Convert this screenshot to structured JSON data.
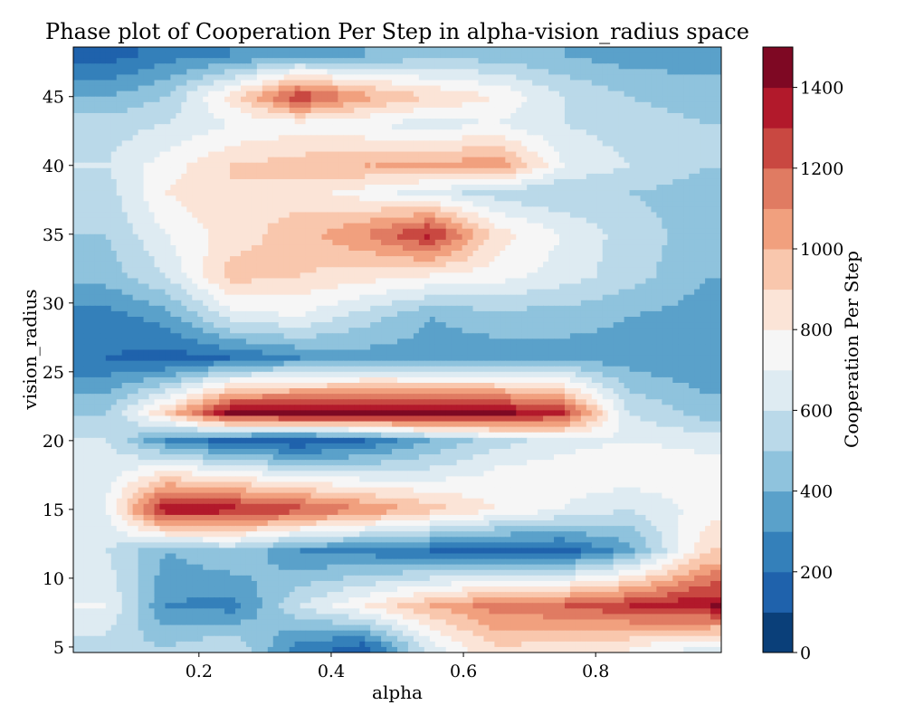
{
  "chart_data": {
    "type": "contourf",
    "title": "Phase plot of Cooperation Per Step in alpha-vision_radius space",
    "xlabel": "alpha",
    "ylabel": "vision_radius",
    "xlim": [
      0.01,
      0.99
    ],
    "ylim": [
      4.6,
      48.6
    ],
    "xticks": [
      0.2,
      0.4,
      0.6,
      0.8
    ],
    "yticks": [
      5,
      10,
      15,
      20,
      25,
      30,
      35,
      40,
      45
    ],
    "grid": false,
    "colormap": "RdBu_r",
    "colorbar": {
      "label": "Cooperation Per Step",
      "range": [
        0,
        1500
      ],
      "ticks": [
        0,
        200,
        400,
        600,
        800,
        1000,
        1200,
        1400
      ],
      "levels": [
        0,
        100,
        200,
        300,
        400,
        500,
        600,
        700,
        800,
        900,
        1000,
        1100,
        1200,
        1300,
        1400,
        1500
      ],
      "colors": [
        "#0a3f79",
        "#1f62ac",
        "#3480ba",
        "#5aa1ca",
        "#8fc3dd",
        "#bad9e9",
        "#deebf2",
        "#f6f6f6",
        "#fbe4d7",
        "#f9c7ad",
        "#f1a07e",
        "#e07b62",
        "#c94841",
        "#b2192b",
        "#7e0823"
      ]
    },
    "vision_radius": [
      5,
      8,
      12,
      15,
      18,
      20,
      22,
      26,
      29,
      32,
      35,
      38,
      40,
      43,
      45,
      48
    ],
    "rows": [
      {
        "vision_radius": 5,
        "values": [
          550,
          500,
          600,
          250,
          150,
          650,
          900,
          850,
          800,
          650
        ]
      },
      {
        "vision_radius": 8,
        "values": [
          700,
          300,
          250,
          600,
          800,
          1000,
          1150,
          1200,
          1300,
          1400
        ]
      },
      {
        "vision_radius": 12,
        "values": [
          600,
          400,
          500,
          300,
          250,
          200,
          150,
          150,
          350,
          900
        ]
      },
      {
        "vision_radius": 15,
        "values": [
          700,
          1400,
          1350,
          1250,
          1100,
          950,
          800,
          700,
          600,
          750
        ]
      },
      {
        "vision_radius": 18,
        "values": [
          650,
          750,
          650,
          550,
          550,
          600,
          700,
          750,
          800,
          750
        ]
      },
      {
        "vision_radius": 20,
        "values": [
          600,
          300,
          150,
          100,
          200,
          400,
          550,
          650,
          700,
          650
        ]
      },
      {
        "vision_radius": 22,
        "values": [
          500,
          900,
          1450,
          1480,
          1480,
          1470,
          1450,
          1300,
          600,
          450
        ]
      },
      {
        "vision_radius": 26,
        "values": [
          200,
          150,
          200,
          300,
          350,
          350,
          350,
          350,
          350,
          300
        ]
      },
      {
        "vision_radius": 29,
        "values": [
          250,
          350,
          650,
          700,
          550,
          400,
          450,
          450,
          400,
          350
        ]
      },
      {
        "vision_radius": 32,
        "values": [
          450,
          600,
          950,
          900,
          850,
          800,
          750,
          650,
          550,
          400
        ]
      },
      {
        "vision_radius": 35,
        "values": [
          500,
          700,
          850,
          950,
          1100,
          1350,
          850,
          700,
          550,
          450
        ]
      },
      {
        "vision_radius": 38,
        "values": [
          550,
          800,
          900,
          850,
          750,
          650,
          550,
          500,
          500,
          450
        ]
      },
      {
        "vision_radius": 40,
        "values": [
          600,
          750,
          900,
          950,
          1000,
          1000,
          1100,
          700,
          600,
          500
        ]
      },
      {
        "vision_radius": 43,
        "values": [
          550,
          600,
          700,
          750,
          700,
          650,
          700,
          600,
          550,
          500
        ]
      },
      {
        "vision_radius": 45,
        "values": [
          400,
          500,
          850,
          1300,
          1050,
          900,
          800,
          600,
          500,
          450
        ]
      },
      {
        "vision_radius": 48,
        "values": [
          150,
          250,
          300,
          350,
          400,
          450,
          450,
          400,
          350,
          350
        ]
      }
    ],
    "alpha_columns": [
      0.06,
      0.15,
      0.25,
      0.35,
      0.45,
      0.55,
      0.65,
      0.75,
      0.85,
      0.97
    ]
  }
}
